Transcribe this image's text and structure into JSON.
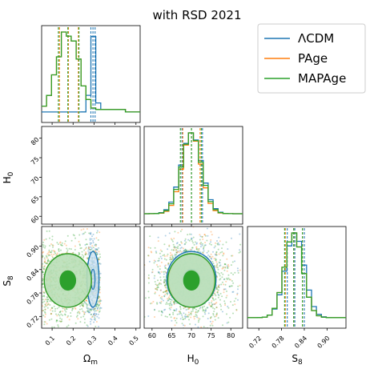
{
  "title": "with RSD 2021",
  "colors": {
    "lcdm": "#1f77b4",
    "page": "#ff7f0e",
    "mapage": "#2ca02c",
    "fill_light": "#b9dfb7",
    "fill_dark": "#2ca02c"
  },
  "legend": {
    "placement": "upper-right",
    "entries": [
      "ΛCDM",
      "PAge",
      "MAPAge"
    ]
  },
  "axis_labels": {
    "om_sym": "Ω",
    "om_sub": "m",
    "h0_sym": "H",
    "h0_sub": "0",
    "s8_sym": "S",
    "s8_sub": "8"
  },
  "chart_data": {
    "type": "corner",
    "title": "with RSD 2021",
    "parameters": [
      "Ωm",
      "H0",
      "S8"
    ],
    "ranges": {
      "om": [
        0.05,
        0.52
      ],
      "h0": [
        58,
        83
      ],
      "s8": [
        0.69,
        0.95
      ]
    },
    "ticks": {
      "om": [
        "0.1",
        "0.2",
        "0.3",
        "0.4",
        "0.5"
      ],
      "h0": [
        "60",
        "65",
        "70",
        "75",
        "80"
      ],
      "s8": [
        "0.72",
        "0.78",
        "0.84",
        "0.90"
      ]
    },
    "series": [
      {
        "name": "ΛCDM",
        "om": {
          "mean": 0.295,
          "sd": 0.012,
          "q": [
            0.285,
            0.295,
            0.305
          ]
        },
        "h0": {
          "mean": 70.0,
          "sd": 2.6,
          "q": [
            67.6,
            70.0,
            72.8
          ]
        },
        "s8": {
          "mean": 0.815,
          "sd": 0.025,
          "q": [
            0.795,
            0.815,
            0.84
          ]
        }
      },
      {
        "name": "PAge",
        "om": {
          "mean": 0.175,
          "sd": 0.05,
          "q": [
            0.135,
            0.178,
            0.225
          ]
        },
        "h0": {
          "mean": 70.0,
          "sd": 2.4,
          "q": [
            67.8,
            70.0,
            72.2
          ]
        },
        "s8": {
          "mean": 0.812,
          "sd": 0.024,
          "q": [
            0.79,
            0.812,
            0.835
          ]
        }
      },
      {
        "name": "MAPAge",
        "om": {
          "mean": 0.175,
          "sd": 0.05,
          "q": [
            0.13,
            0.175,
            0.228
          ]
        },
        "h0": {
          "mean": 70.0,
          "sd": 2.5,
          "q": [
            67.2,
            70.0,
            72.5
          ]
        },
        "s8": {
          "mean": 0.812,
          "sd": 0.024,
          "q": [
            0.788,
            0.812,
            0.835
          ]
        }
      }
    ]
  }
}
